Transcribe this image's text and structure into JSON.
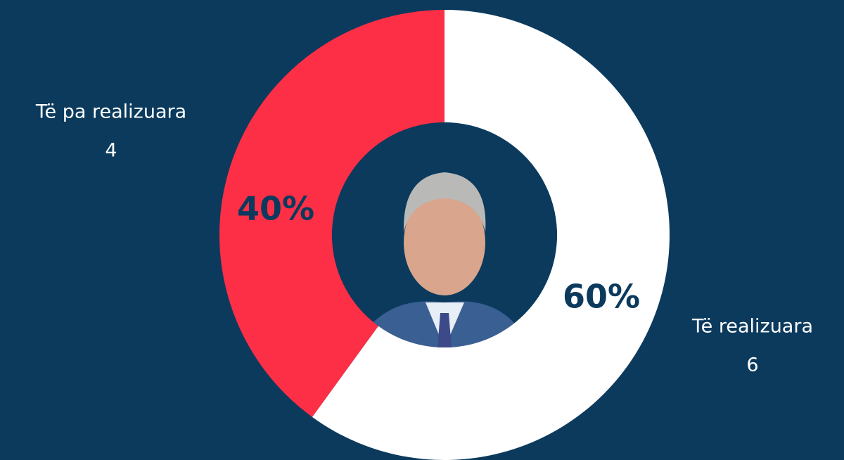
{
  "chart_data": {
    "type": "donut",
    "categories": [
      "Të realizuara",
      "Të pa realizuara"
    ],
    "values": [
      60,
      40
    ],
    "value_labels": [
      "60%",
      "40%"
    ],
    "counts": [
      6,
      4
    ],
    "colors": [
      "#ffffff",
      "#fc2f46"
    ]
  }
}
